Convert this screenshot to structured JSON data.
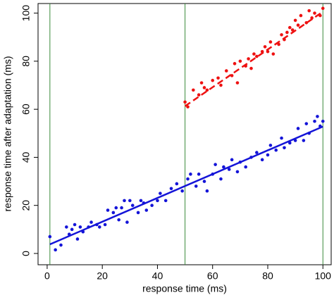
{
  "chart_data": {
    "type": "scatter",
    "x_label": "response time (ms)",
    "y_label": "response time after adaptation (ms)",
    "xlim": [
      -3.3,
      103
    ],
    "ylim": [
      -4.7,
      104
    ],
    "xticks": [
      0,
      20,
      40,
      60,
      80,
      100
    ],
    "yticks": [
      0,
      20,
      40,
      60,
      80,
      100
    ],
    "vlines": {
      "color": "#3a8a3a",
      "x": [
        1,
        50,
        100
      ]
    },
    "series": [
      {
        "color": "#1414d8",
        "x": [
          1,
          3,
          5,
          7,
          8,
          9,
          10,
          11,
          12,
          13,
          15,
          16,
          18,
          19,
          21,
          22,
          24,
          25,
          26,
          27,
          28,
          29,
          30,
          31,
          33,
          34,
          35,
          36,
          38,
          40,
          41,
          43,
          45,
          47,
          49,
          51,
          52,
          54,
          55,
          57,
          58,
          60,
          61,
          63,
          64,
          66,
          67,
          69,
          70,
          72,
          74,
          76,
          78,
          80,
          81,
          83,
          85,
          86,
          88,
          90,
          91,
          93,
          94,
          95,
          97,
          98,
          99,
          100
        ],
        "values": [
          7,
          1.5,
          3.5,
          11,
          8,
          10,
          12,
          6,
          11,
          9,
          11,
          13,
          12,
          11,
          12,
          18,
          17,
          19,
          14,
          19,
          22,
          13,
          22,
          20,
          17,
          22,
          21,
          18,
          20,
          22,
          25,
          22,
          27,
          29,
          26,
          31,
          33,
          28,
          33,
          30,
          26,
          33,
          37,
          31,
          36,
          35,
          39,
          34,
          38,
          36,
          40,
          42,
          39,
          41,
          45,
          43,
          48,
          44,
          46,
          47,
          52,
          47,
          54,
          50,
          55,
          57,
          53,
          55
        ],
        "fit": {
          "x": [
            1,
            100
          ],
          "values": [
            3.8,
            52.8
          ],
          "dashed": false
        }
      },
      {
        "color": "#ee1111",
        "x": [
          50,
          51,
          53,
          55,
          56,
          57,
          58,
          60,
          62,
          63,
          65,
          67,
          68,
          69,
          70,
          72,
          73,
          74,
          75,
          76,
          78,
          79,
          80,
          81,
          82,
          84,
          85,
          86,
          87,
          88,
          89,
          90,
          91,
          92,
          94,
          95,
          96,
          97,
          99,
          100
        ],
        "values": [
          63,
          61,
          68,
          66,
          71,
          69,
          68,
          72,
          73,
          70,
          76,
          74,
          79,
          71,
          80,
          78,
          81,
          77,
          83,
          82,
          84,
          86,
          84,
          88,
          83,
          87,
          91,
          89,
          92,
          94,
          93,
          97,
          95,
          99,
          96,
          101,
          98,
          100,
          99,
          102
        ],
        "fit": {
          "x": [
            50,
            100
          ],
          "values": [
            61.3,
            100.6
          ],
          "dashed": true
        }
      }
    ]
  }
}
